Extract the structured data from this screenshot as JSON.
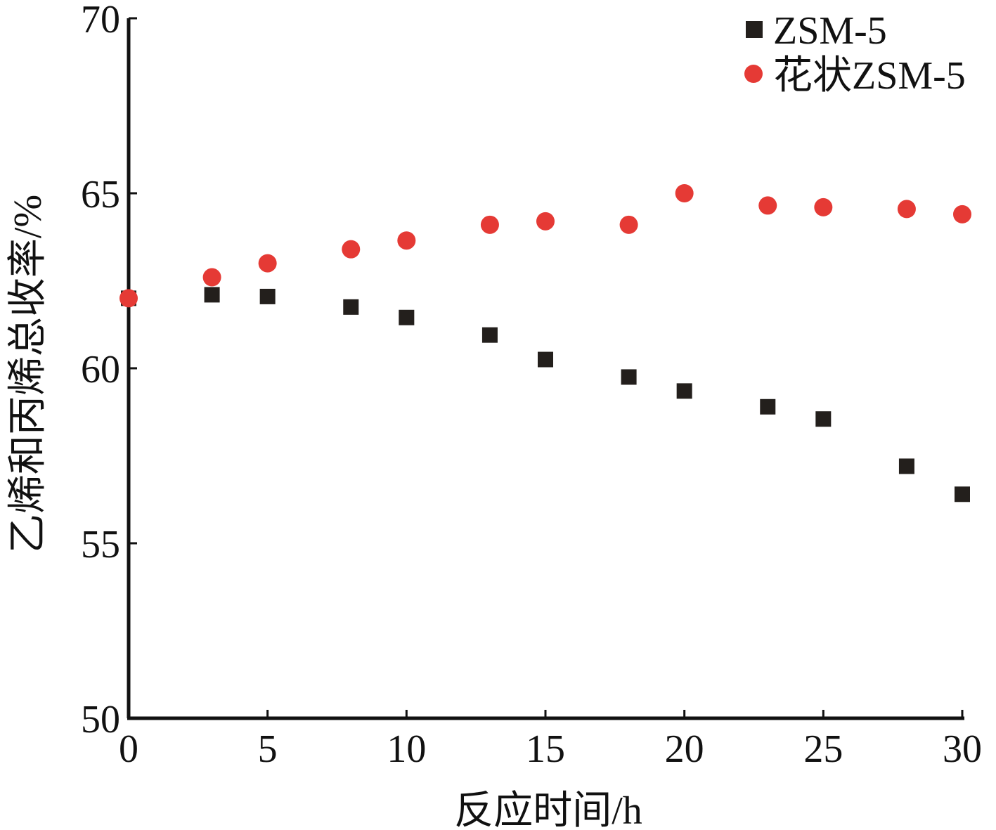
{
  "chart_data": {
    "type": "scatter",
    "x": [
      0,
      3,
      5,
      8,
      10,
      13,
      15,
      18,
      20,
      23,
      25,
      28,
      30
    ],
    "series": [
      {
        "name": "ZSM-5",
        "marker": "square",
        "color": "#231f1c",
        "values": [
          62.0,
          62.1,
          62.05,
          61.75,
          61.45,
          60.95,
          60.25,
          59.75,
          59.35,
          58.9,
          58.55,
          57.2,
          56.4
        ]
      },
      {
        "name": "花状ZSM-5",
        "marker": "circle",
        "color": "#e53a35",
        "values": [
          62.0,
          62.6,
          63.0,
          63.4,
          63.65,
          64.1,
          64.2,
          64.1,
          65.0,
          64.65,
          64.6,
          64.55,
          64.4
        ]
      }
    ],
    "xlabel": "反应时间/h",
    "ylabel": "乙烯和丙烯总收率/%",
    "xlim": [
      0,
      30
    ],
    "ylim": [
      50,
      70
    ],
    "xticks": [
      "0",
      "5",
      "10",
      "15",
      "20",
      "25",
      "30"
    ],
    "yticks": [
      "50",
      "55",
      "60",
      "65",
      "70"
    ],
    "grid": false,
    "legend_position": "top-right"
  }
}
